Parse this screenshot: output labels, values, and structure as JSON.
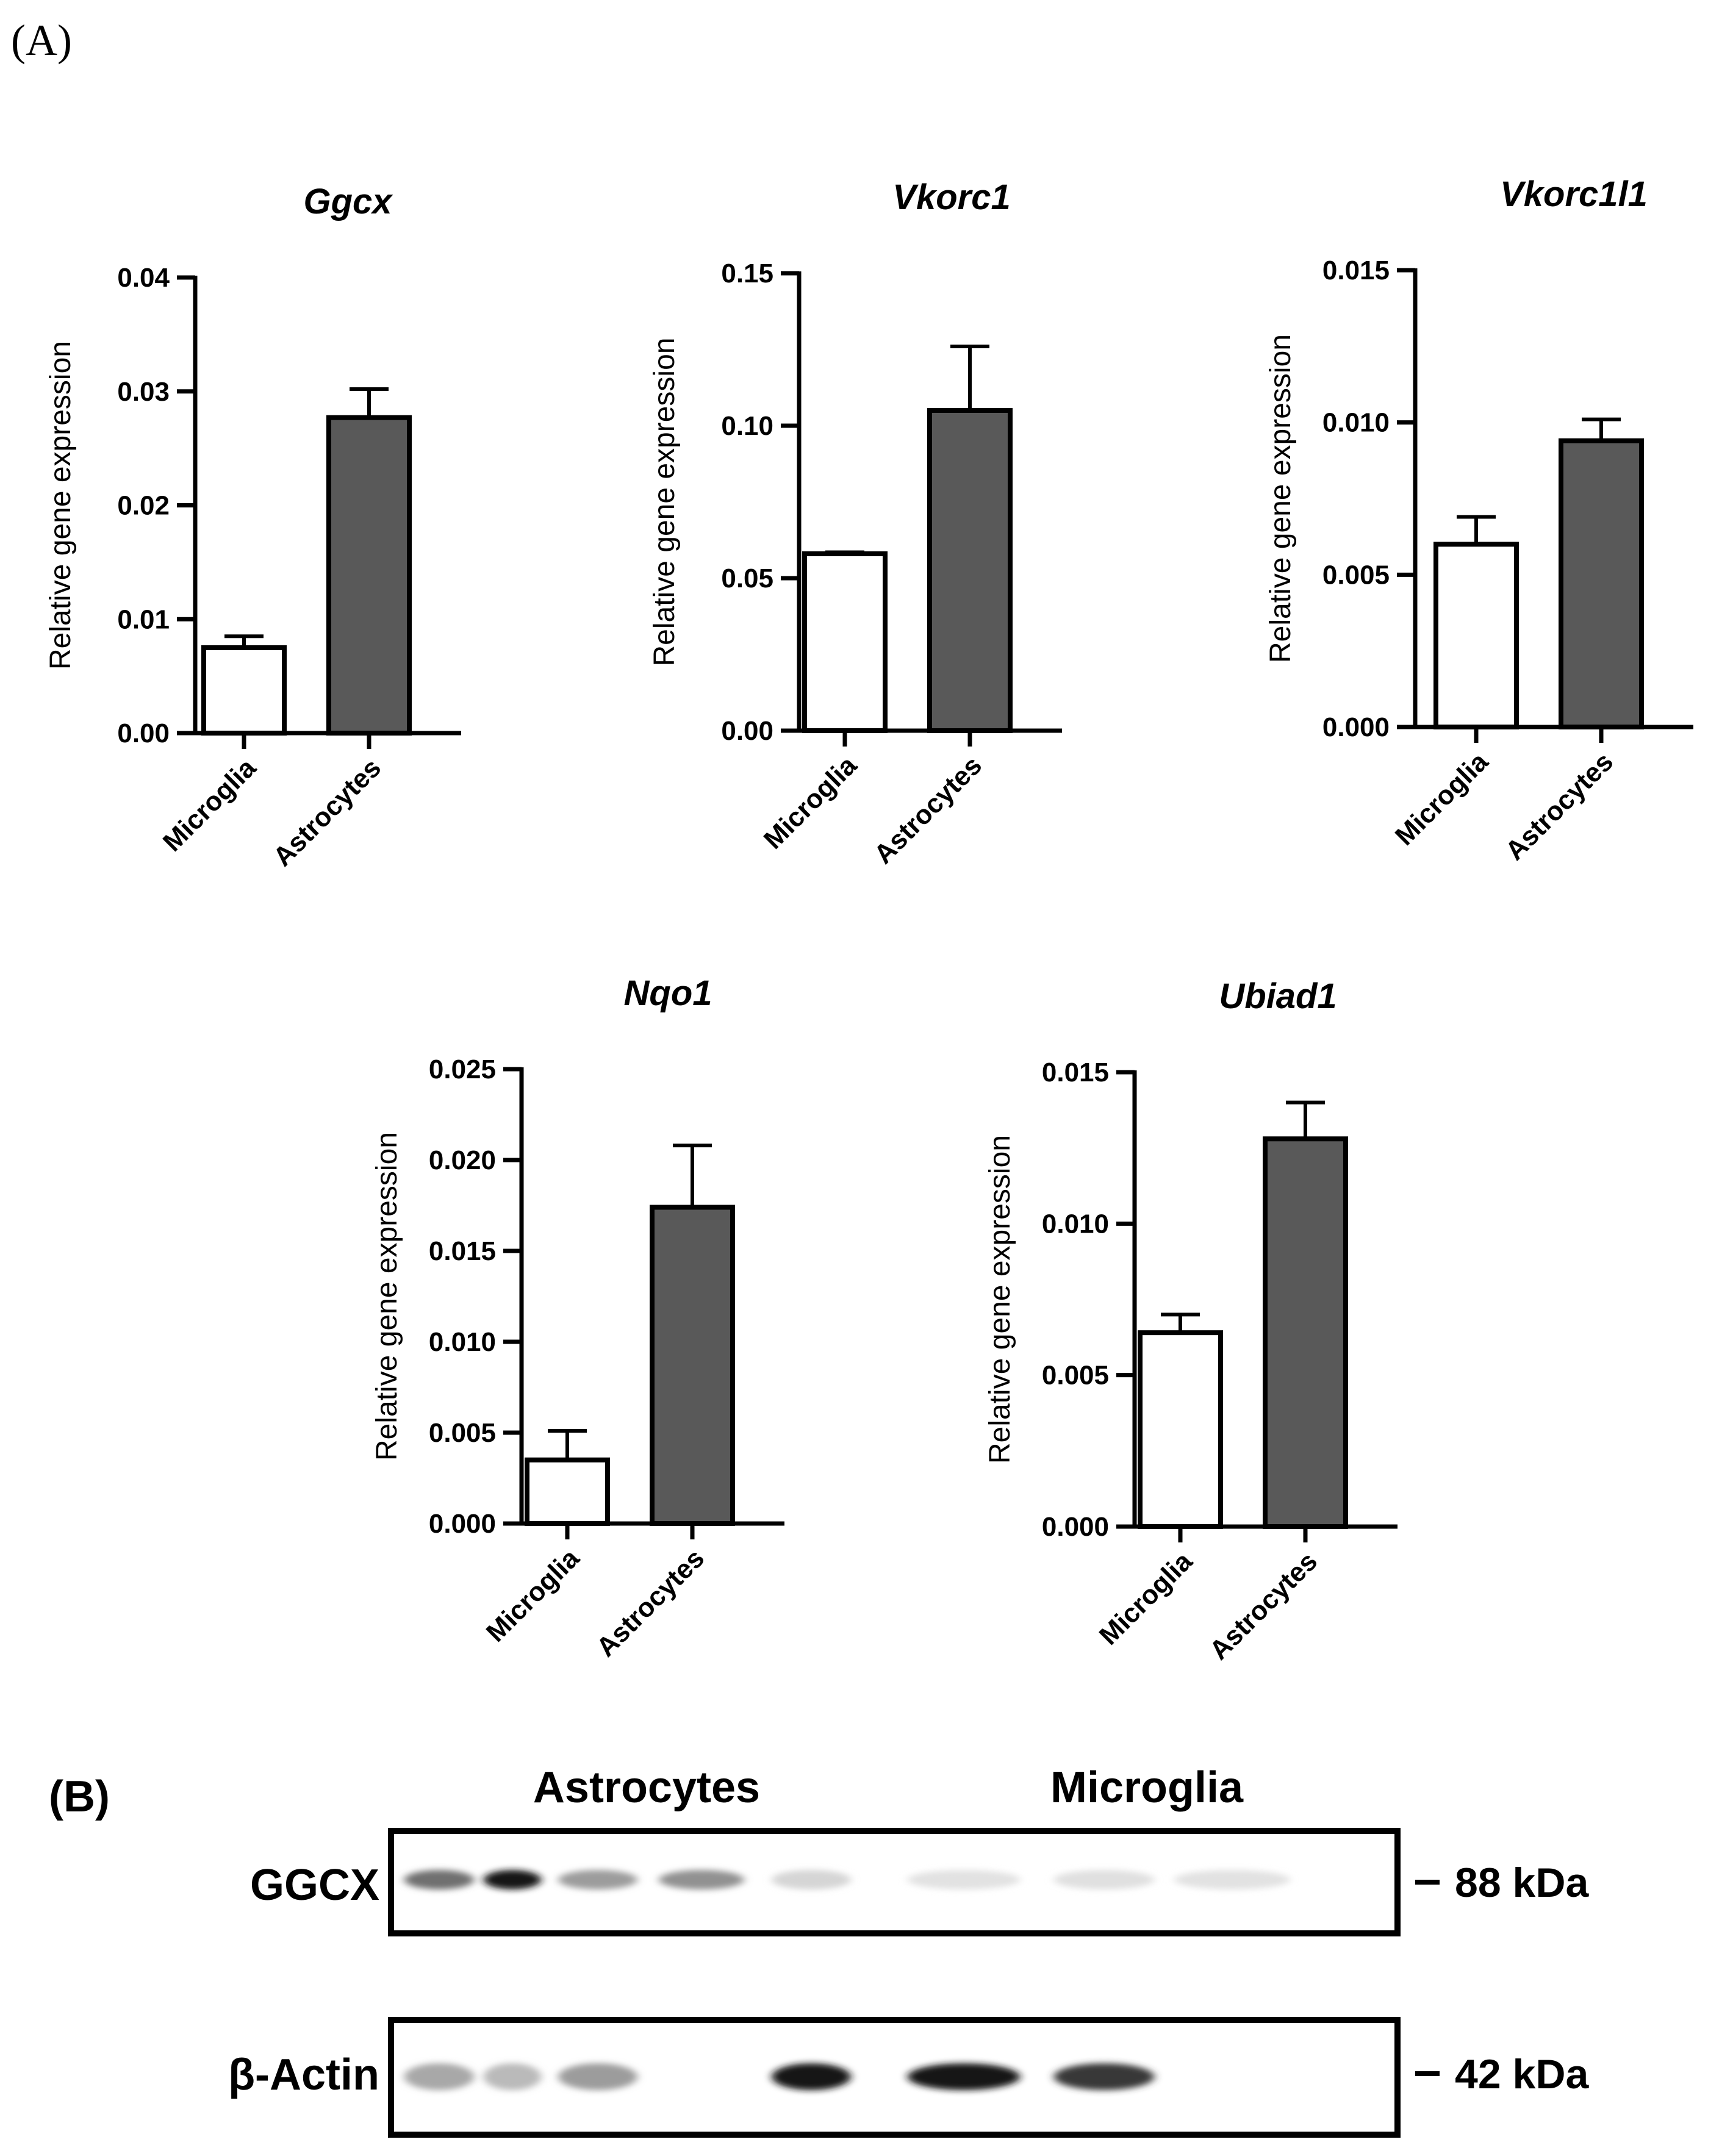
{
  "figure": {
    "panel_a_label": "(A)",
    "panel_b_label": "(B)"
  },
  "chart_data": [
    {
      "type": "bar",
      "title": "Ggcx",
      "categories": [
        "Microglia",
        "Astrocytes"
      ],
      "values": [
        0.0075,
        0.0277
      ],
      "errors": [
        0.001,
        0.0025
      ],
      "ylabel": "Relative gene expression",
      "xlabel": "",
      "ylim": [
        0,
        0.04
      ],
      "yticks": [
        "0.00",
        "0.01",
        "0.02",
        "0.03",
        "0.04"
      ],
      "colors": [
        "#ffffff",
        "#595959"
      ]
    },
    {
      "type": "bar",
      "title": "Vkorc1",
      "categories": [
        "Microglia",
        "Astrocytes"
      ],
      "values": [
        0.058,
        0.105
      ],
      "errors": [
        0.0005,
        0.021
      ],
      "ylabel": "Relative gene expression",
      "xlabel": "",
      "ylim": [
        0,
        0.15
      ],
      "yticks": [
        "0.00",
        "0.05",
        "0.10",
        "0.15"
      ],
      "colors": [
        "#ffffff",
        "#595959"
      ]
    },
    {
      "type": "bar",
      "title": "Vkorc1l1",
      "categories": [
        "Microglia",
        "Astrocytes"
      ],
      "values": [
        0.006,
        0.0094
      ],
      "errors": [
        0.0009,
        0.0007
      ],
      "ylabel": "Relative gene expression",
      "xlabel": "",
      "ylim": [
        0,
        0.015
      ],
      "yticks": [
        "0.000",
        "0.005",
        "0.010",
        "0.015"
      ],
      "colors": [
        "#ffffff",
        "#595959"
      ]
    },
    {
      "type": "bar",
      "title": "Nqo1",
      "categories": [
        "Microglia",
        "Astrocytes"
      ],
      "values": [
        0.0035,
        0.0174
      ],
      "errors": [
        0.0016,
        0.0034
      ],
      "ylabel": "Relative gene expression",
      "xlabel": "",
      "ylim": [
        0,
        0.025
      ],
      "yticks": [
        "0.000",
        "0.005",
        "0.010",
        "0.015",
        "0.020",
        "0.025"
      ],
      "colors": [
        "#ffffff",
        "#595959"
      ]
    },
    {
      "type": "bar",
      "title": "Ubiad1",
      "categories": [
        "Microglia",
        "Astrocytes"
      ],
      "values": [
        0.0064,
        0.0128
      ],
      "errors": [
        0.0006,
        0.0012
      ],
      "ylabel": "Relative gene expression",
      "xlabel": "",
      "ylim": [
        0,
        0.015
      ],
      "yticks": [
        "0.000",
        "0.005",
        "0.010",
        "0.015"
      ],
      "colors": [
        "#ffffff",
        "#595959"
      ]
    }
  ],
  "western_blot": {
    "group_labels": [
      "Astrocytes",
      "Microglia"
    ],
    "rows": [
      {
        "protein": "GGCX",
        "mw": "88 kDa",
        "intensities": [
          0.55,
          0.95,
          0.35,
          0.4,
          0.1,
          0.04,
          0.05,
          0.04
        ]
      },
      {
        "protein": "β-Actin",
        "mw": "42 kDa",
        "intensities": [
          0.3,
          0.22,
          0.35,
          0.0,
          0.95,
          0.95,
          0.8,
          0.0
        ]
      }
    ]
  }
}
